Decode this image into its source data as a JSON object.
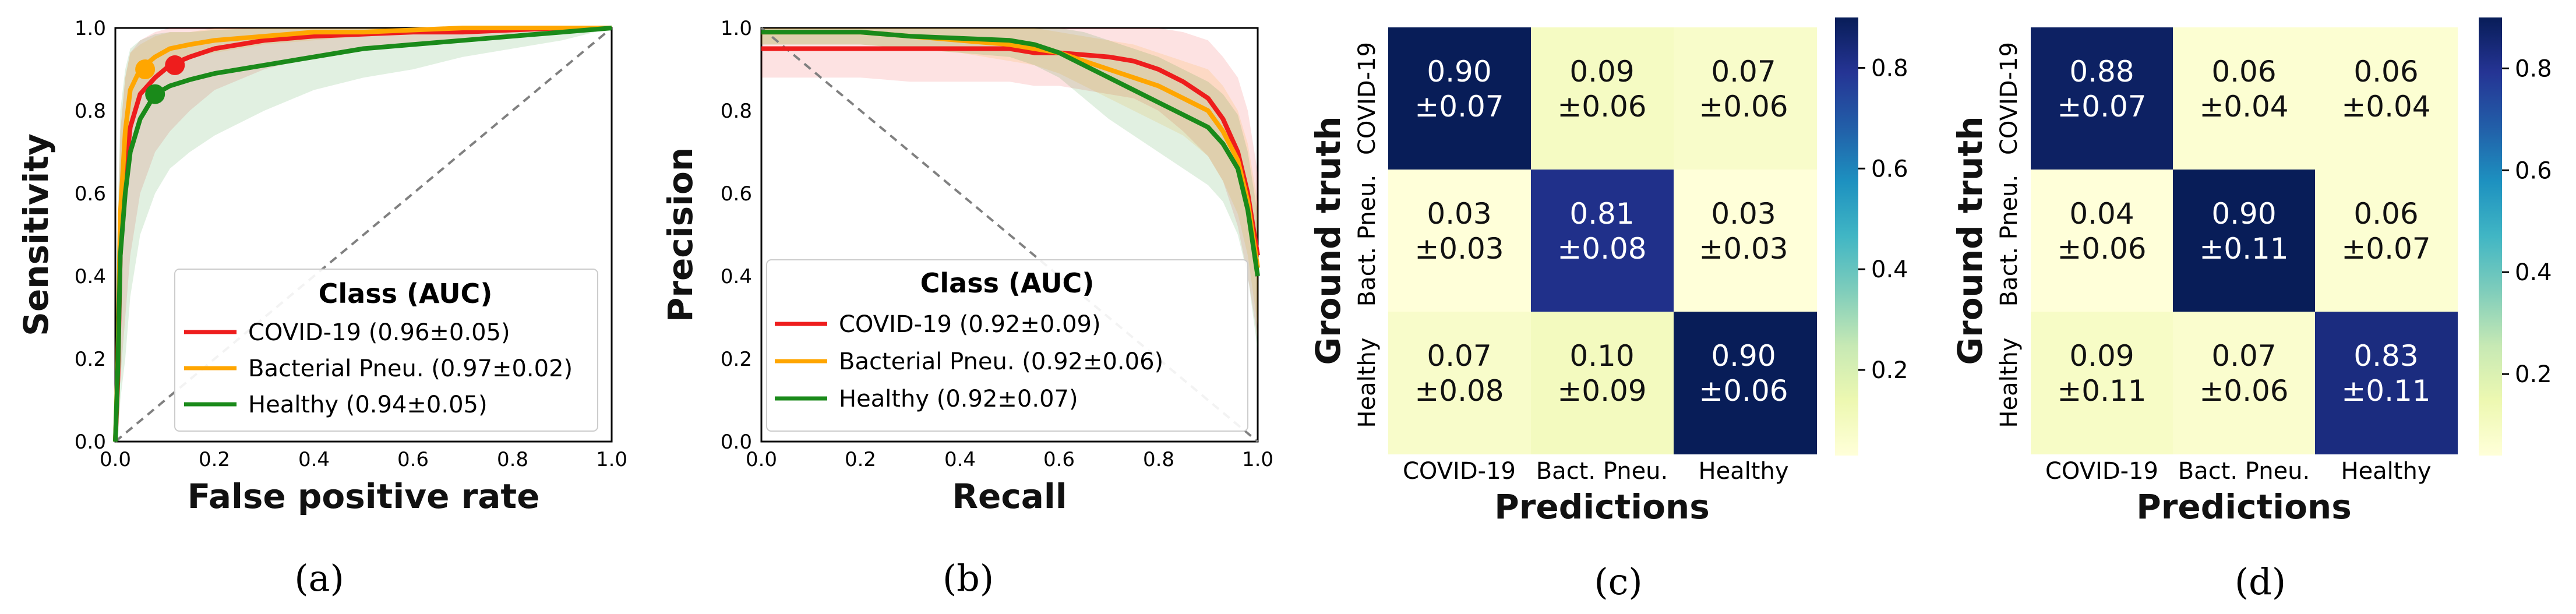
{
  "colors": {
    "covid": "#ee1d1d",
    "bacterial": "#ffa600",
    "healthy": "#1a8a1a",
    "diag": "#808080"
  },
  "chart_data": [
    {
      "id": "roc",
      "type": "line",
      "caption": "(a)",
      "xlabel": "False positive rate",
      "ylabel": "Sensitivity",
      "xlim": [
        0,
        1
      ],
      "ylim": [
        0,
        1
      ],
      "xticks": [
        "0.0",
        "0.2",
        "0.4",
        "0.6",
        "0.8",
        "1.0"
      ],
      "yticks": [
        "0.0",
        "0.2",
        "0.4",
        "0.6",
        "0.8",
        "1.0"
      ],
      "legend_title": "Class (AUC)",
      "legend_location": "lower-right",
      "diagonal": "y=x",
      "series": [
        {
          "name": "COVID-19 (0.96±0.05)",
          "color_key": "covid",
          "x": [
            0,
            0.005,
            0.01,
            0.02,
            0.03,
            0.05,
            0.08,
            0.11,
            0.15,
            0.2,
            0.3,
            0.4,
            0.5,
            0.6,
            0.7,
            0.8,
            0.9,
            1.0
          ],
          "y": [
            0,
            0.15,
            0.45,
            0.65,
            0.76,
            0.84,
            0.88,
            0.91,
            0.93,
            0.95,
            0.97,
            0.98,
            0.985,
            0.99,
            0.99,
            0.995,
            1.0,
            1.0
          ],
          "upper": [
            0.2,
            0.5,
            0.75,
            0.88,
            0.94,
            0.97,
            0.99,
            1.0,
            1.0,
            1.0,
            1.0,
            1.0,
            1.0,
            1.0,
            1.0,
            1.0,
            1.0,
            1.0
          ],
          "lower": [
            0,
            0,
            0.15,
            0.3,
            0.45,
            0.6,
            0.7,
            0.75,
            0.8,
            0.85,
            0.9,
            0.93,
            0.95,
            0.96,
            0.97,
            0.98,
            0.99,
            1.0
          ],
          "marker": [
            0.12,
            0.91
          ]
        },
        {
          "name": "Bacterial Pneu. (0.97±0.02)",
          "color_key": "bacterial",
          "x": [
            0,
            0.005,
            0.01,
            0.02,
            0.03,
            0.05,
            0.08,
            0.11,
            0.15,
            0.2,
            0.3,
            0.4,
            0.5,
            0.6,
            0.7,
            0.8,
            0.9,
            1.0
          ],
          "y": [
            0,
            0.2,
            0.55,
            0.75,
            0.85,
            0.9,
            0.93,
            0.95,
            0.96,
            0.97,
            0.98,
            0.99,
            0.99,
            0.995,
            1.0,
            1.0,
            1.0,
            1.0
          ],
          "upper": [
            0.1,
            0.45,
            0.75,
            0.88,
            0.94,
            0.96,
            0.98,
            0.99,
            0.99,
            1.0,
            1.0,
            1.0,
            1.0,
            1.0,
            1.0,
            1.0,
            1.0,
            1.0
          ],
          "lower": [
            0,
            0.05,
            0.35,
            0.6,
            0.75,
            0.84,
            0.88,
            0.91,
            0.93,
            0.94,
            0.96,
            0.97,
            0.98,
            0.99,
            0.99,
            1.0,
            1.0,
            1.0
          ],
          "marker": [
            0.06,
            0.9
          ]
        },
        {
          "name": "Healthy (0.94±0.05)",
          "color_key": "healthy",
          "x": [
            0,
            0.005,
            0.01,
            0.02,
            0.03,
            0.05,
            0.08,
            0.11,
            0.15,
            0.2,
            0.3,
            0.4,
            0.5,
            0.6,
            0.7,
            0.8,
            0.9,
            1.0
          ],
          "y": [
            0,
            0.18,
            0.45,
            0.6,
            0.7,
            0.78,
            0.84,
            0.86,
            0.875,
            0.89,
            0.91,
            0.93,
            0.95,
            0.96,
            0.97,
            0.98,
            0.99,
            1.0
          ],
          "upper": [
            0.2,
            0.55,
            0.8,
            0.9,
            0.95,
            0.97,
            0.985,
            0.99,
            0.99,
            0.995,
            1.0,
            1.0,
            1.0,
            1.0,
            1.0,
            1.0,
            1.0,
            1.0
          ],
          "lower": [
            0,
            0,
            0.1,
            0.2,
            0.35,
            0.5,
            0.6,
            0.66,
            0.7,
            0.74,
            0.8,
            0.85,
            0.88,
            0.9,
            0.93,
            0.95,
            0.97,
            1.0
          ],
          "marker": [
            0.08,
            0.84
          ]
        }
      ]
    },
    {
      "id": "pr",
      "type": "line",
      "caption": "(b)",
      "xlabel": "Recall",
      "ylabel": "Precision",
      "xlim": [
        0,
        1
      ],
      "ylim": [
        0,
        1
      ],
      "xticks": [
        "0.0",
        "0.2",
        "0.4",
        "0.6",
        "0.8",
        "1.0"
      ],
      "yticks": [
        "0.0",
        "0.2",
        "0.4",
        "0.6",
        "0.8",
        "1.0"
      ],
      "legend_title": "Class (AUC)",
      "legend_location": "lower-right",
      "diagonal": "y=1-x",
      "series": [
        {
          "name": "COVID-19 (0.92±0.09)",
          "color_key": "covid",
          "x": [
            0,
            0.1,
            0.2,
            0.3,
            0.4,
            0.5,
            0.55,
            0.6,
            0.65,
            0.7,
            0.75,
            0.8,
            0.85,
            0.9,
            0.93,
            0.96,
            0.98,
            1.0
          ],
          "y": [
            0.95,
            0.95,
            0.95,
            0.95,
            0.95,
            0.95,
            0.94,
            0.94,
            0.935,
            0.93,
            0.92,
            0.9,
            0.87,
            0.83,
            0.78,
            0.7,
            0.6,
            0.45
          ],
          "upper": [
            1.0,
            1.0,
            1.0,
            1.0,
            1.0,
            1.0,
            1.0,
            1.0,
            1.0,
            1.0,
            1.0,
            1.0,
            0.99,
            0.97,
            0.93,
            0.88,
            0.8,
            0.65
          ],
          "lower": [
            0.88,
            0.88,
            0.88,
            0.87,
            0.87,
            0.87,
            0.86,
            0.86,
            0.85,
            0.84,
            0.83,
            0.8,
            0.75,
            0.69,
            0.63,
            0.52,
            0.4,
            0.25
          ]
        },
        {
          "name": "Bacterial Pneu. (0.92±0.06)",
          "color_key": "bacterial",
          "x": [
            0,
            0.1,
            0.2,
            0.3,
            0.4,
            0.5,
            0.55,
            0.6,
            0.65,
            0.7,
            0.75,
            0.8,
            0.85,
            0.9,
            0.93,
            0.96,
            0.98,
            1.0
          ],
          "y": [
            0.99,
            0.99,
            0.99,
            0.98,
            0.97,
            0.96,
            0.95,
            0.94,
            0.92,
            0.9,
            0.88,
            0.86,
            0.83,
            0.8,
            0.75,
            0.68,
            0.58,
            0.42
          ],
          "upper": [
            1.0,
            1.0,
            1.0,
            1.0,
            1.0,
            1.0,
            1.0,
            0.99,
            0.98,
            0.97,
            0.96,
            0.94,
            0.92,
            0.9,
            0.86,
            0.8,
            0.72,
            0.58
          ],
          "lower": [
            0.96,
            0.96,
            0.96,
            0.95,
            0.94,
            0.92,
            0.91,
            0.89,
            0.86,
            0.83,
            0.8,
            0.77,
            0.74,
            0.69,
            0.63,
            0.55,
            0.45,
            0.28
          ]
        },
        {
          "name": "Healthy (0.92±0.07)",
          "color_key": "healthy",
          "x": [
            0,
            0.1,
            0.2,
            0.3,
            0.4,
            0.5,
            0.55,
            0.6,
            0.65,
            0.7,
            0.75,
            0.8,
            0.85,
            0.9,
            0.93,
            0.96,
            0.98,
            1.0
          ],
          "y": [
            0.99,
            0.99,
            0.99,
            0.98,
            0.975,
            0.97,
            0.96,
            0.94,
            0.91,
            0.88,
            0.85,
            0.82,
            0.79,
            0.76,
            0.72,
            0.66,
            0.56,
            0.4
          ],
          "upper": [
            1.0,
            1.0,
            1.0,
            1.0,
            1.0,
            1.0,
            1.0,
            1.0,
            0.99,
            0.97,
            0.95,
            0.93,
            0.9,
            0.87,
            0.84,
            0.79,
            0.7,
            0.55
          ],
          "lower": [
            0.96,
            0.96,
            0.96,
            0.95,
            0.94,
            0.93,
            0.91,
            0.88,
            0.83,
            0.78,
            0.74,
            0.7,
            0.66,
            0.62,
            0.58,
            0.5,
            0.4,
            0.22
          ]
        }
      ]
    },
    {
      "id": "cm1",
      "type": "heatmap",
      "caption": "(c)",
      "xlabel": "Predictions",
      "ylabel": "Ground truth",
      "col_labels": [
        "COVID-19",
        "Bact. Pneu.",
        "Healthy"
      ],
      "row_labels": [
        "COVID-19",
        "Bact. Pneu.",
        "Healthy"
      ],
      "values": [
        [
          0.9,
          0.09,
          0.07
        ],
        [
          0.03,
          0.81,
          0.03
        ],
        [
          0.07,
          0.1,
          0.9
        ]
      ],
      "cell_text": [
        [
          "0.90",
          "±0.07",
          "0.09",
          "±0.06",
          "0.07",
          "±0.06"
        ],
        [
          "0.03",
          "±0.03",
          "0.81",
          "±0.08",
          "0.03",
          "±0.03"
        ],
        [
          "0.07",
          "±0.08",
          "0.10",
          "±0.09",
          "0.90",
          "±0.06"
        ]
      ],
      "colorbar_ticks": [
        "0.8",
        "0.6",
        "0.4",
        "0.2"
      ],
      "colorbar_range": [
        0.03,
        0.9
      ]
    },
    {
      "id": "cm2",
      "type": "heatmap",
      "caption": "(d)",
      "xlabel": "Predictions",
      "ylabel": "Ground truth",
      "col_labels": [
        "COVID-19",
        "Bact. Pneu.",
        "Healthy"
      ],
      "row_labels": [
        "COVID-19",
        "Bact. Pneu.",
        "Healthy"
      ],
      "values": [
        [
          0.88,
          0.06,
          0.06
        ],
        [
          0.04,
          0.9,
          0.06
        ],
        [
          0.09,
          0.07,
          0.83
        ]
      ],
      "cell_text": [
        [
          "0.88",
          "±0.07",
          "0.06",
          "±0.04",
          "0.06",
          "±0.04"
        ],
        [
          "0.04",
          "±0.06",
          "0.90",
          "±0.11",
          "0.06",
          "±0.07"
        ],
        [
          "0.09",
          "±0.11",
          "0.07",
          "±0.06",
          "0.83",
          "±0.11"
        ]
      ],
      "colorbar_ticks": [
        "0.8",
        "0.6",
        "0.4",
        "0.2"
      ],
      "colorbar_range": [
        0.04,
        0.9
      ]
    }
  ]
}
